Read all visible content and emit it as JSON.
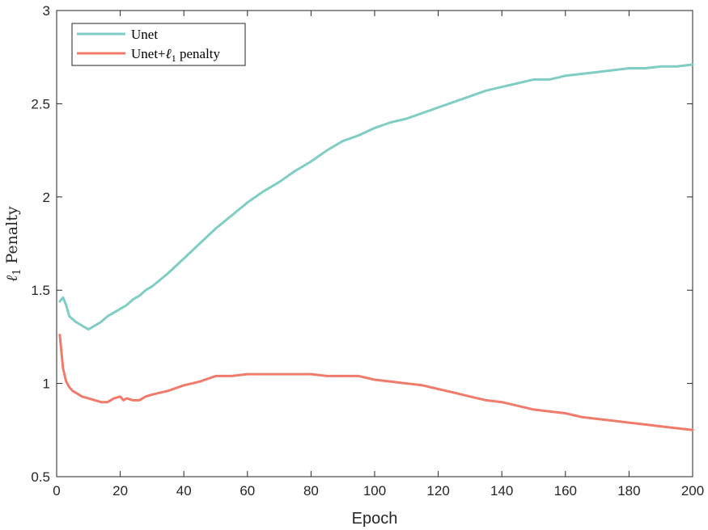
{
  "chart_data": {
    "type": "line",
    "xlabel": "Epoch",
    "ylabel": "ℓ1 Penalty",
    "ylabel_parts": {
      "symbol": "ℓ",
      "subscript": "1",
      "rest": " Penalty"
    },
    "xlim": [
      0,
      200
    ],
    "ylim": [
      0.5,
      3
    ],
    "xticks": [
      "0",
      "20",
      "40",
      "60",
      "80",
      "100",
      "120",
      "140",
      "160",
      "180",
      "200"
    ],
    "yticks": [
      "0.5",
      "1",
      "1.5",
      "2",
      "2.5",
      "3"
    ],
    "grid": false,
    "legend_position": "top-left",
    "series": [
      {
        "name": "Unet",
        "color": "#7fcdc4",
        "x": [
          1,
          2,
          3,
          4,
          6,
          8,
          10,
          12,
          14,
          16,
          18,
          20,
          22,
          24,
          26,
          28,
          30,
          35,
          40,
          45,
          50,
          55,
          60,
          65,
          70,
          75,
          80,
          85,
          90,
          95,
          100,
          105,
          110,
          115,
          120,
          125,
          130,
          135,
          140,
          145,
          150,
          155,
          160,
          165,
          170,
          175,
          180,
          185,
          190,
          195,
          200
        ],
        "values": [
          1.44,
          1.46,
          1.42,
          1.36,
          1.33,
          1.31,
          1.29,
          1.31,
          1.33,
          1.36,
          1.38,
          1.4,
          1.42,
          1.45,
          1.47,
          1.5,
          1.52,
          1.59,
          1.67,
          1.75,
          1.83,
          1.9,
          1.97,
          2.03,
          2.08,
          2.14,
          2.19,
          2.25,
          2.3,
          2.33,
          2.37,
          2.4,
          2.42,
          2.45,
          2.48,
          2.51,
          2.54,
          2.57,
          2.59,
          2.61,
          2.63,
          2.63,
          2.65,
          2.66,
          2.67,
          2.68,
          2.69,
          2.69,
          2.7,
          2.7,
          2.71
        ]
      },
      {
        "name": "Unet+ℓ1 penalty",
        "name_parts": {
          "prefix": "Unet+",
          "symbol": "ℓ",
          "subscript": "1",
          "suffix": " penalty"
        },
        "color": "#f07b6b",
        "x": [
          1,
          2,
          3,
          4,
          5,
          6,
          8,
          10,
          12,
          14,
          16,
          18,
          20,
          21,
          22,
          24,
          26,
          28,
          30,
          35,
          40,
          45,
          50,
          55,
          60,
          65,
          70,
          75,
          80,
          85,
          90,
          95,
          100,
          105,
          110,
          115,
          120,
          125,
          130,
          135,
          140,
          145,
          150,
          155,
          160,
          165,
          170,
          175,
          180,
          185,
          190,
          195,
          200
        ],
        "values": [
          1.26,
          1.08,
          1.01,
          0.98,
          0.96,
          0.95,
          0.93,
          0.92,
          0.91,
          0.9,
          0.9,
          0.92,
          0.93,
          0.91,
          0.92,
          0.91,
          0.91,
          0.93,
          0.94,
          0.96,
          0.99,
          1.01,
          1.04,
          1.04,
          1.05,
          1.05,
          1.05,
          1.05,
          1.05,
          1.04,
          1.04,
          1.04,
          1.02,
          1.01,
          1.0,
          0.99,
          0.97,
          0.95,
          0.93,
          0.91,
          0.9,
          0.88,
          0.86,
          0.85,
          0.84,
          0.82,
          0.81,
          0.8,
          0.79,
          0.78,
          0.77,
          0.76,
          0.75
        ]
      }
    ]
  }
}
